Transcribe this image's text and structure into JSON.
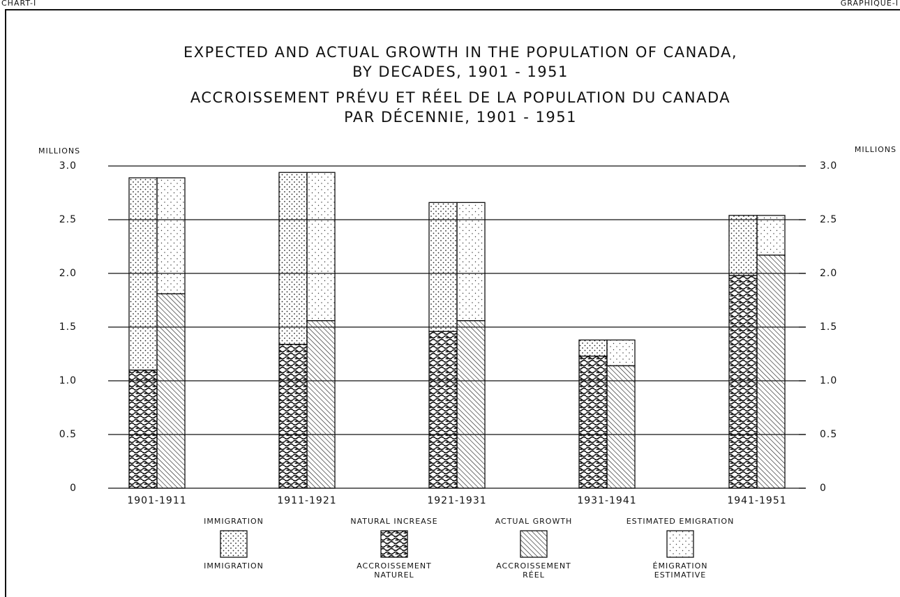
{
  "chart_data": {
    "type": "bar",
    "corner_left": "CHART-I",
    "corner_right": "GRAPHIQUE-I",
    "title": [
      "EXPECTED AND ACTUAL GROWTH IN THE POPULATION OF CANADA,",
      "BY DECADES, 1901 - 1951"
    ],
    "title_fr": [
      "ACCROISSEMENT PRÉVU ET RÉEL DE LA POPULATION DU CANADA",
      "PAR DÉCENNIE, 1901 - 1951"
    ],
    "ylabel": "MILLIONS",
    "y2label": "MILLIONS",
    "categories": [
      "1901-1911",
      "1911-1921",
      "1921-1931",
      "1931-1941",
      "1941-1951"
    ],
    "series": [
      {
        "name": "NATURAL INCREASE",
        "name_fr": [
          "ACCROISSEMENT",
          "NATUREL"
        ],
        "pattern": "squiggle",
        "stack": 0,
        "values": [
          1.1,
          1.34,
          1.46,
          1.23,
          1.98
        ]
      },
      {
        "name": "IMMIGRATION",
        "name_fr": [
          "IMMIGRATION"
        ],
        "pattern": "dots",
        "stack": 0,
        "values": [
          1.79,
          1.6,
          1.2,
          0.15,
          0.56
        ]
      },
      {
        "name": "ACTUAL GROWTH",
        "name_fr": [
          "ACCROISSEMENT",
          "RÉEL"
        ],
        "pattern": "hatch",
        "stack": 1,
        "values": [
          1.81,
          1.56,
          1.56,
          1.14,
          2.17
        ]
      },
      {
        "name": "ESTIMATED EMIGRATION",
        "name_fr": [
          "ÉMIGRATION",
          "ESTIMATIVE"
        ],
        "pattern": "sparse",
        "stack": 1,
        "values": [
          1.08,
          1.38,
          1.1,
          0.24,
          0.37
        ]
      }
    ],
    "ylim": [
      0,
      3
    ],
    "yticks": [
      0,
      0.5,
      {
        "value": 1,
        "label": "1.0"
      },
      1.5,
      {
        "value": 2,
        "label": "2.0"
      },
      2.5,
      {
        "value": 3,
        "label": "3.0"
      }
    ],
    "y2lim": [
      0,
      3
    ],
    "y2ticks": [
      0,
      0.5,
      {
        "value": 1,
        "label": "1.0"
      },
      1.5,
      {
        "value": 2,
        "label": "2.0"
      },
      2.5,
      {
        "value": 3,
        "label": "3.0"
      }
    ],
    "grid": true
  }
}
